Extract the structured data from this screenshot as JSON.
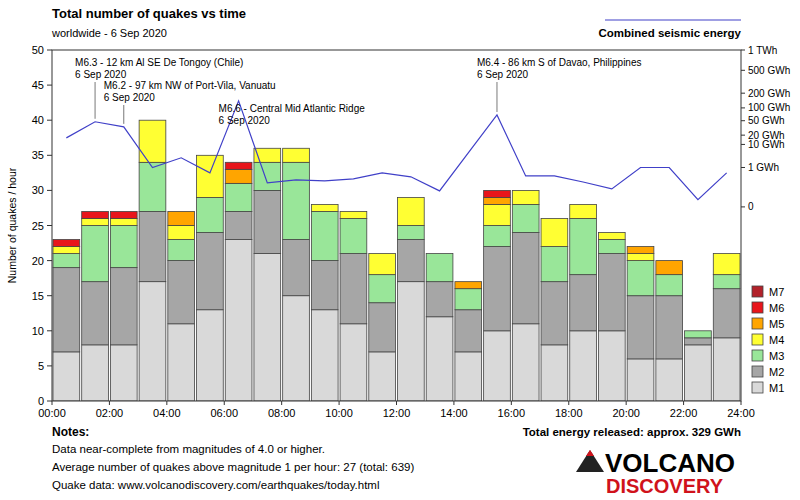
{
  "chart_data": {
    "type": "bar",
    "stacked": true,
    "title": "Total number of quakes vs time",
    "subtitle": "worldwide -  6 Sep 2020",
    "y_label": "Number of quakes / hour",
    "bins": [
      0,
      1,
      2,
      3,
      4,
      5,
      6,
      7,
      8,
      9,
      10,
      11,
      12,
      13,
      14,
      15,
      16,
      17,
      18,
      19,
      20,
      21,
      22,
      23,
      24
    ],
    "xlim": [
      0,
      24
    ],
    "xticks": [
      {
        "value": 0,
        "label": "00:00"
      },
      {
        "value": 2,
        "label": "02:00"
      },
      {
        "value": 4,
        "label": "04:00"
      },
      {
        "value": 6,
        "label": "06:00"
      },
      {
        "value": 8,
        "label": "08:00"
      },
      {
        "value": 10,
        "label": "10:00"
      },
      {
        "value": 12,
        "label": "12:00"
      },
      {
        "value": 14,
        "label": "14:00"
      },
      {
        "value": 16,
        "label": "16:00"
      },
      {
        "value": 18,
        "label": "18:00"
      },
      {
        "value": 20,
        "label": "20:00"
      },
      {
        "value": 22,
        "label": "22:00"
      },
      {
        "value": 24,
        "label": "24:00"
      }
    ],
    "ylim": [
      0,
      50
    ],
    "yticks": [
      0,
      5,
      10,
      15,
      20,
      25,
      30,
      35,
      40,
      45,
      50
    ],
    "y2lim": [
      0,
      1000
    ],
    "y2ticks": [
      0,
      {
        "value": 1,
        "label": "1 GWh"
      },
      {
        "value": 10,
        "label": "10 GWh"
      },
      {
        "value": 20,
        "label": "20 GWh"
      },
      {
        "value": 50,
        "label": "50 GWh"
      },
      {
        "value": 100,
        "label": "100 GWh"
      },
      {
        "value": 200,
        "label": "200 GWh"
      },
      {
        "value": 500,
        "label": "500 GWh"
      },
      {
        "value": 1000,
        "label": "1 TWh"
      }
    ],
    "grid": false,
    "legend": "right",
    "series": [
      {
        "name": "M1",
        "color": "#d9d9d9",
        "values": [
          7,
          8,
          8,
          17,
          11,
          13,
          23,
          21,
          15,
          13,
          11,
          7,
          17,
          12,
          7,
          10,
          11,
          8,
          10,
          10,
          6,
          6,
          8,
          9
        ]
      },
      {
        "name": "M2",
        "color": "#a6a6a6",
        "values": [
          12,
          9,
          11,
          10,
          9,
          11,
          4,
          9,
          8,
          7,
          10,
          7,
          6,
          5,
          6,
          12,
          13,
          9,
          8,
          11,
          9,
          9,
          1,
          7
        ]
      },
      {
        "name": "M3",
        "color": "#99e699",
        "values": [
          2,
          8,
          6,
          7,
          3,
          5,
          4,
          4,
          11,
          7,
          5,
          4,
          2,
          4,
          3,
          3,
          4,
          5,
          8,
          2,
          5,
          3,
          1,
          2
        ]
      },
      {
        "name": "M4",
        "color": "#ffff33",
        "values": [
          1,
          1,
          1,
          6,
          2,
          6,
          0,
          2,
          2,
          1,
          1,
          3,
          4,
          0,
          0,
          3,
          2,
          4,
          2,
          1,
          1,
          0,
          0,
          3
        ]
      },
      {
        "name": "M5",
        "color": "#ffa500",
        "values": [
          0,
          0,
          0,
          0,
          2,
          0,
          2,
          0,
          0,
          0,
          0,
          0,
          0,
          0,
          1,
          1,
          0,
          0,
          0,
          0,
          1,
          2,
          0,
          0
        ]
      },
      {
        "name": "M6",
        "color": "#e8151b",
        "values": [
          1,
          1,
          1,
          0,
          0,
          0,
          1,
          0,
          0,
          0,
          0,
          0,
          0,
          0,
          0,
          1,
          0,
          0,
          0,
          0,
          0,
          0,
          0,
          0
        ]
      },
      {
        "name": "M7",
        "color": "#b2222a",
        "values": [
          0,
          0,
          0,
          0,
          0,
          0,
          0,
          0,
          0,
          0,
          0,
          0,
          0,
          0,
          0,
          0,
          0,
          0,
          0,
          0,
          0,
          0,
          0,
          0
        ]
      },
      {
        "name": "Combined seismic energy",
        "type": "line",
        "axis": "y2",
        "color": "#4040c8",
        "values": [
          16.5,
          47,
          34.5,
          1,
          3,
          0.48,
          141,
          0.084,
          0.15,
          0.125,
          0.18,
          0.48,
          0.26,
          0.011,
          4.8,
          69,
          0.3,
          0.3,
          0.1,
          0.02,
          1,
          1,
          0.0002,
          0.48
        ]
      }
    ],
    "annotations": [
      {
        "text": [
          "M6.3 - 12 km Al SE De Tongoy (Chile)",
          "6 Sep 2020"
        ],
        "x": 1.5
      },
      {
        "text": [
          "M6.2 - 97 km NW of Port-Vila, Vanuatu",
          "6 Sep 2020"
        ],
        "x": 2.5
      },
      {
        "text": [
          "M6.6 - Central Mid Atlantic Ridge",
          "6 Sep 2020"
        ],
        "x": 6.5
      },
      {
        "text": [
          "M6.4 - 86 km S of Davao, Philippines",
          "6 Sep 2020"
        ],
        "x": 15.5
      }
    ],
    "total_energy": "Total energy released: approx. 329 GWh",
    "notes": {
      "title": "Notes:",
      "lines": [
        "Data near-complete from magnitudes of 4.0 or higher.",
        "Average number of quakes above magnitude 1 per hour: 27 (total: 639)",
        "Quake data: www.volcanodiscovery.com/earthquakes/today.html"
      ]
    },
    "logo": [
      "VOLCANO",
      "DISCOVERY"
    ]
  }
}
